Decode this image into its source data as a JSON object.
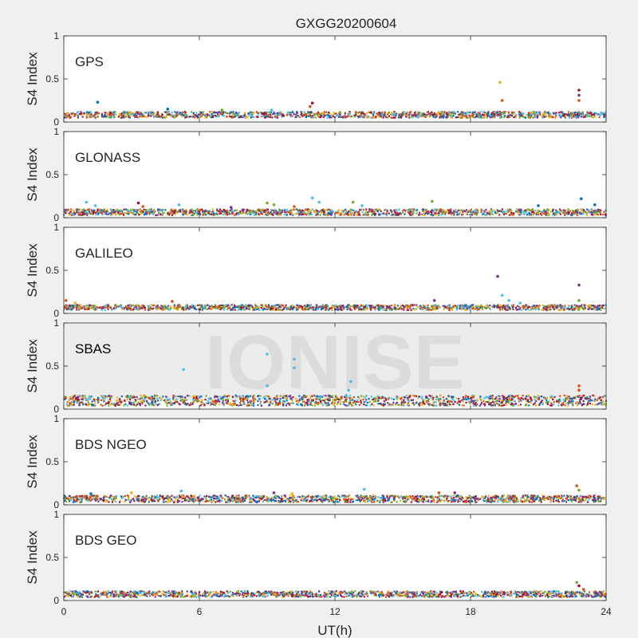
{
  "figure": {
    "title": "GXGG20200604",
    "watermark": "IONISE",
    "xlabel": "UT(h)",
    "ylabel": "S4 Index"
  },
  "chart_data": [
    {
      "type": "scatter",
      "label": "GPS",
      "xlim": [
        0,
        24
      ],
      "ylim": [
        0,
        1
      ],
      "xticks": [
        0,
        6,
        12,
        18,
        24
      ],
      "yticks": [
        0,
        0.5,
        1
      ],
      "ytick_labels": [
        "0",
        "0.5",
        "1"
      ],
      "baseline": {
        "min": 0.05,
        "max": 0.12
      },
      "points": [
        {
          "x": 1.5,
          "y": 0.23,
          "color": "#0072BD"
        },
        {
          "x": 4.6,
          "y": 0.15,
          "color": "#0072BD"
        },
        {
          "x": 7.0,
          "y": 0.14,
          "color": "#77AC30"
        },
        {
          "x": 9.2,
          "y": 0.14,
          "color": "#4DBEEE"
        },
        {
          "x": 10.9,
          "y": 0.18,
          "color": "#D95319"
        },
        {
          "x": 11.0,
          "y": 0.22,
          "color": "#A2142F"
        },
        {
          "x": 19.3,
          "y": 0.46,
          "color": "#EDB120"
        },
        {
          "x": 19.4,
          "y": 0.25,
          "color": "#D95319"
        },
        {
          "x": 22.8,
          "y": 0.37,
          "color": "#A2142F"
        },
        {
          "x": 22.8,
          "y": 0.31,
          "color": "#7E2F8E"
        },
        {
          "x": 22.8,
          "y": 0.25,
          "color": "#D95319"
        }
      ]
    },
    {
      "type": "scatter",
      "label": "GLONASS",
      "xlim": [
        0,
        24
      ],
      "ylim": [
        0,
        1
      ],
      "xticks": [
        0,
        6,
        12,
        18,
        24
      ],
      "yticks": [
        0,
        0.5,
        1
      ],
      "ytick_labels": [
        "0",
        "0.5",
        "1"
      ],
      "baseline": {
        "min": 0.03,
        "max": 0.1
      },
      "points": [
        {
          "x": 1.0,
          "y": 0.18,
          "color": "#4DBEEE"
        },
        {
          "x": 1.4,
          "y": 0.14,
          "color": "#4DBEEE"
        },
        {
          "x": 3.3,
          "y": 0.17,
          "color": "#A2142F"
        },
        {
          "x": 3.5,
          "y": 0.13,
          "color": "#D95319"
        },
        {
          "x": 5.1,
          "y": 0.15,
          "color": "#4DBEEE"
        },
        {
          "x": 7.4,
          "y": 0.12,
          "color": "#7E2F8E"
        },
        {
          "x": 9.0,
          "y": 0.17,
          "color": "#77AC30"
        },
        {
          "x": 9.3,
          "y": 0.15,
          "color": "#77AC30"
        },
        {
          "x": 10.2,
          "y": 0.13,
          "color": "#D95319"
        },
        {
          "x": 11.0,
          "y": 0.23,
          "color": "#4DBEEE"
        },
        {
          "x": 11.3,
          "y": 0.18,
          "color": "#4DBEEE"
        },
        {
          "x": 12.8,
          "y": 0.18,
          "color": "#77AC30"
        },
        {
          "x": 13.2,
          "y": 0.14,
          "color": "#4DBEEE"
        },
        {
          "x": 16.3,
          "y": 0.19,
          "color": "#77AC30"
        },
        {
          "x": 21.0,
          "y": 0.14,
          "color": "#0072BD"
        },
        {
          "x": 22.9,
          "y": 0.22,
          "color": "#0072BD"
        },
        {
          "x": 23.5,
          "y": 0.15,
          "color": "#0072BD"
        }
      ]
    },
    {
      "type": "scatter",
      "label": "GALILEO",
      "xlim": [
        0,
        24
      ],
      "ylim": [
        0,
        1
      ],
      "xticks": [
        0,
        6,
        12,
        18,
        24
      ],
      "yticks": [
        0,
        0.5,
        1
      ],
      "ytick_labels": [
        "0",
        "0.5",
        "1"
      ],
      "baseline": {
        "min": 0.04,
        "max": 0.1
      },
      "points": [
        {
          "x": 0.1,
          "y": 0.15,
          "color": "#D95319"
        },
        {
          "x": 0.5,
          "y": 0.12,
          "color": "#EDB120"
        },
        {
          "x": 4.8,
          "y": 0.14,
          "color": "#D95319"
        },
        {
          "x": 16.4,
          "y": 0.15,
          "color": "#7E2F8E"
        },
        {
          "x": 19.2,
          "y": 0.43,
          "color": "#7E2F8E"
        },
        {
          "x": 19.4,
          "y": 0.21,
          "color": "#4DBEEE"
        },
        {
          "x": 19.7,
          "y": 0.15,
          "color": "#4DBEEE"
        },
        {
          "x": 20.2,
          "y": 0.12,
          "color": "#4DBEEE"
        },
        {
          "x": 22.8,
          "y": 0.33,
          "color": "#7E2F8E"
        },
        {
          "x": 22.8,
          "y": 0.15,
          "color": "#77AC30"
        }
      ]
    },
    {
      "type": "scatter",
      "label": "SBAS",
      "xlim": [
        0,
        24
      ],
      "ylim": [
        0,
        1
      ],
      "xticks": [
        0,
        6,
        12,
        18,
        24
      ],
      "yticks": [
        0,
        0.5,
        1
      ],
      "ytick_labels": [
        "0",
        "0.5",
        "1"
      ],
      "baseline": {
        "min": 0.04,
        "max": 0.16
      },
      "points": [
        {
          "x": 5.3,
          "y": 0.46,
          "color": "#4DBEEE"
        },
        {
          "x": 9.0,
          "y": 0.64,
          "color": "#4DBEEE"
        },
        {
          "x": 9.0,
          "y": 0.27,
          "color": "#4DBEEE"
        },
        {
          "x": 10.2,
          "y": 0.58,
          "color": "#4DBEEE"
        },
        {
          "x": 10.2,
          "y": 0.48,
          "color": "#4DBEEE"
        },
        {
          "x": 12.7,
          "y": 0.32,
          "color": "#4DBEEE"
        },
        {
          "x": 12.6,
          "y": 0.22,
          "color": "#4DBEEE"
        },
        {
          "x": 12.5,
          "y": 0.16,
          "color": "#4DBEEE"
        },
        {
          "x": 22.8,
          "y": 0.27,
          "color": "#D95319"
        },
        {
          "x": 22.8,
          "y": 0.22,
          "color": "#D95319"
        }
      ]
    },
    {
      "type": "scatter",
      "label": "BDS NGEO",
      "xlim": [
        0,
        24
      ],
      "ylim": [
        0,
        1
      ],
      "xticks": [
        0,
        6,
        12,
        18,
        24
      ],
      "yticks": [
        0,
        0.5,
        1
      ],
      "ytick_labels": [
        "0",
        "0.5",
        "1"
      ],
      "baseline": {
        "min": 0.03,
        "max": 0.11
      },
      "points": [
        {
          "x": 1.2,
          "y": 0.13,
          "color": "#0072BD"
        },
        {
          "x": 3.0,
          "y": 0.14,
          "color": "#EDB120"
        },
        {
          "x": 5.2,
          "y": 0.16,
          "color": "#4DBEEE"
        },
        {
          "x": 9.3,
          "y": 0.14,
          "color": "#7E2F8E"
        },
        {
          "x": 10.1,
          "y": 0.13,
          "color": "#EDB120"
        },
        {
          "x": 13.3,
          "y": 0.18,
          "color": "#4DBEEE"
        },
        {
          "x": 16.6,
          "y": 0.14,
          "color": "#D95319"
        },
        {
          "x": 17.3,
          "y": 0.14,
          "color": "#7E2F8E"
        },
        {
          "x": 22.7,
          "y": 0.22,
          "color": "#D95319"
        },
        {
          "x": 22.8,
          "y": 0.17,
          "color": "#77AC30"
        }
      ]
    },
    {
      "type": "scatter",
      "label": "BDS GEO",
      "xlim": [
        0,
        24
      ],
      "ylim": [
        0,
        1
      ],
      "xticks": [
        0,
        6,
        12,
        18,
        24
      ],
      "yticks": [
        0,
        0.5,
        1
      ],
      "ytick_labels": [
        "0",
        "0.5",
        "1"
      ],
      "baseline": {
        "min": 0.04,
        "max": 0.11
      },
      "points": [
        {
          "x": 22.7,
          "y": 0.21,
          "color": "#77AC30"
        },
        {
          "x": 22.8,
          "y": 0.17,
          "color": "#A2142F"
        },
        {
          "x": 23.0,
          "y": 0.13,
          "color": "#D95319"
        }
      ]
    }
  ],
  "series_colors": [
    "#0072BD",
    "#D95319",
    "#EDB120",
    "#7E2F8E",
    "#77AC30",
    "#4DBEEE",
    "#A2142F"
  ]
}
